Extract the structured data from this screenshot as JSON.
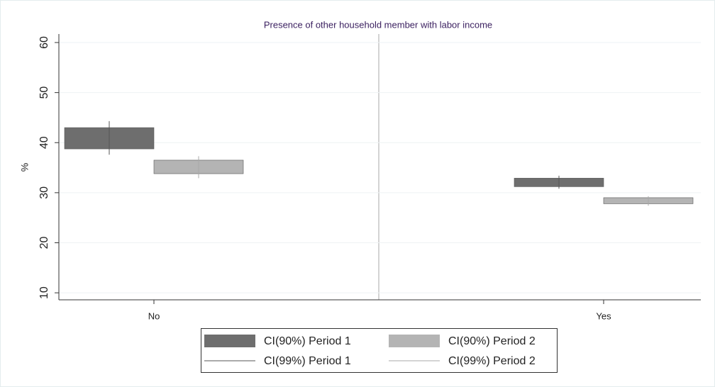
{
  "chart_data": {
    "type": "rangebar",
    "title": "Presence of other household member with labor income",
    "y_label": "%",
    "categories": [
      "No",
      "Yes"
    ],
    "ylim": [
      8.6,
      61.7
    ],
    "yticks": [
      10,
      20,
      30,
      40,
      50,
      60
    ],
    "grid": true,
    "series": [
      {
        "name": "CI(90%) Period 1",
        "style": "box",
        "slot": 0,
        "color": "#6e6e6e",
        "low": [
          38.75,
          31.2
        ],
        "high": [
          43.0,
          32.9
        ]
      },
      {
        "name": "CI(90%) Period 2",
        "style": "box",
        "slot": 1,
        "color": "#b4b4b4",
        "low": [
          33.8,
          27.8
        ],
        "high": [
          36.5,
          29.0
        ]
      },
      {
        "name": "CI(99%) Period 1",
        "style": "spike",
        "slot": 0,
        "color": "#555555",
        "low": [
          37.6,
          30.8
        ],
        "high": [
          44.3,
          33.4
        ]
      },
      {
        "name": "CI(99%) Period 2",
        "style": "spike",
        "slot": 1,
        "color": "#a8a8a8",
        "low": [
          32.9,
          27.4
        ],
        "high": [
          37.3,
          29.3
        ]
      }
    ]
  }
}
